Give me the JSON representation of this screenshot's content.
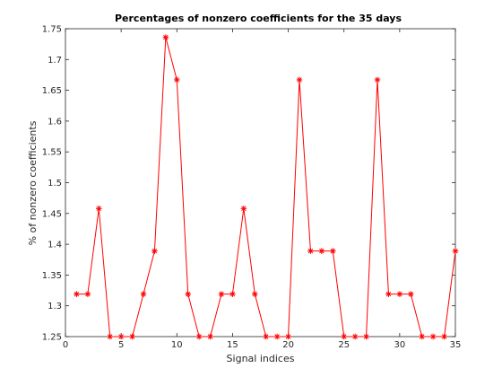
{
  "chart_data": {
    "type": "line",
    "title": "Percentages of nonzero coefficients for the 35 days",
    "xlabel": "Signal indices",
    "ylabel": "% of nonzero coefficients",
    "xlim": [
      0,
      35
    ],
    "ylim": [
      1.25,
      1.75
    ],
    "xticks": [
      0,
      5,
      10,
      15,
      20,
      25,
      30,
      35
    ],
    "xtick_labels": [
      "0",
      "5",
      "10",
      "15",
      "20",
      "25",
      "30",
      "35"
    ],
    "yticks": [
      1.25,
      1.3,
      1.35,
      1.4,
      1.45,
      1.5,
      1.55,
      1.6,
      1.65,
      1.7,
      1.75
    ],
    "ytick_labels": [
      "1.25",
      "1.3",
      "1.35",
      "1.4",
      "1.45",
      "1.5",
      "1.55",
      "1.6",
      "1.65",
      "1.7",
      "1.75"
    ],
    "grid": false,
    "marker": "asterisk",
    "line_color": "#ff0000",
    "marker_color": "#ff0000",
    "x": [
      1,
      2,
      3,
      4,
      5,
      6,
      7,
      8,
      9,
      10,
      11,
      12,
      13,
      14,
      15,
      16,
      17,
      18,
      19,
      20,
      21,
      22,
      23,
      24,
      25,
      26,
      27,
      28,
      29,
      30,
      31,
      32,
      33,
      34,
      35
    ],
    "series": [
      {
        "values": [
          1.319,
          1.319,
          1.458,
          1.25,
          1.25,
          1.25,
          1.319,
          1.389,
          1.736,
          1.667,
          1.319,
          1.25,
          1.25,
          1.319,
          1.319,
          1.458,
          1.319,
          1.25,
          1.25,
          1.25,
          1.667,
          1.389,
          1.389,
          1.389,
          1.25,
          1.25,
          1.25,
          1.667,
          1.319,
          1.319,
          1.319,
          1.25,
          1.25,
          1.25,
          1.389
        ]
      }
    ]
  }
}
